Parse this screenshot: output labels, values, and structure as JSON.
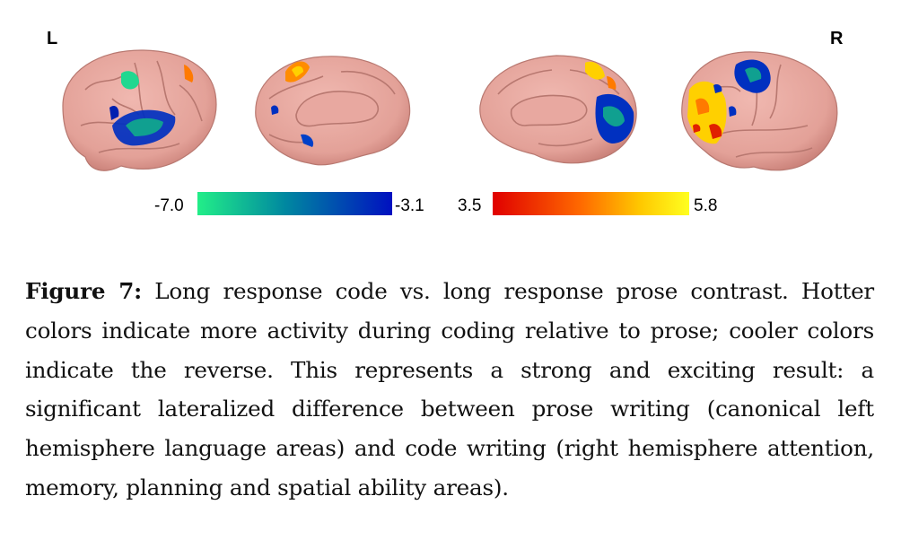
{
  "figure": {
    "left_label": "L",
    "right_label": "R",
    "colorbar_cool": {
      "min_label": "-7.0",
      "max_label": "-3.1",
      "colors": [
        "#22ee88",
        "#0088a0",
        "#0010c0"
      ]
    },
    "colorbar_hot": {
      "min_label": "3.5",
      "max_label": "5.8",
      "colors": [
        "#e00000",
        "#ff6a00",
        "#ffc800",
        "#ffff20"
      ]
    },
    "brain_color": "#e8a8a0"
  },
  "caption": {
    "label": "Figure 7:",
    "text": " Long response code vs. long response prose contrast. Hotter colors indicate more activity during coding relative to prose; cooler colors indicate the reverse. This represents a strong and exciting result: a significant lateralized difference between prose writing (canonical left hemisphere language areas) and code writing (right hemisphere attention, memory, planning and spatial ability areas)."
  }
}
